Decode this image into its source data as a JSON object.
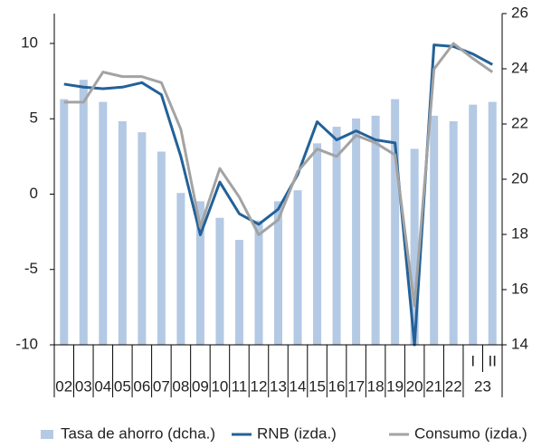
{
  "chart_data": {
    "type": "bar-line",
    "categories": [
      "02",
      "03",
      "04",
      "05",
      "06",
      "07",
      "08",
      "09",
      "10",
      "11",
      "12",
      "13",
      "14",
      "15",
      "16",
      "17",
      "18",
      "19",
      "20",
      "21",
      "22",
      {
        "label": "I",
        "group": "23"
      },
      {
        "label": "II",
        "group": "23"
      }
    ],
    "series": [
      {
        "name": "Tasa de ahorro (dcha.)",
        "type": "bar",
        "axis": "y2",
        "color": "#b4c9e4",
        "values": [
          22.9,
          23.6,
          22.8,
          22.1,
          21.7,
          21.0,
          19.5,
          19.2,
          18.6,
          17.8,
          18.5,
          19.2,
          19.6,
          21.3,
          21.9,
          22.2,
          22.3,
          22.9,
          21.1,
          22.3,
          22.1,
          22.7,
          22.8
        ]
      },
      {
        "name": "RNB (izda.)",
        "type": "line",
        "axis": "y",
        "color": "#236198",
        "values": [
          7.3,
          7.1,
          7.0,
          7.1,
          7.4,
          6.6,
          2.5,
          -2.7,
          0.8,
          -1.3,
          -2.0,
          -1.0,
          1.3,
          4.8,
          3.6,
          4.2,
          3.6,
          3.4,
          -10.0,
          9.9,
          9.8,
          9.3,
          8.6
        ]
      },
      {
        "name": "Consumo (izda.)",
        "type": "line",
        "axis": "y",
        "color": "#a3a3a3",
        "values": [
          6.1,
          6.1,
          8.1,
          7.8,
          7.8,
          7.4,
          4.3,
          -2.2,
          1.7,
          -0.2,
          -2.7,
          -1.7,
          1.5,
          3.0,
          2.5,
          3.9,
          3.4,
          2.6,
          -7.4,
          8.3,
          10.0,
          9.0,
          8.1
        ]
      }
    ],
    "ylim": [
      -10,
      12
    ],
    "yticks": [
      -10,
      -5,
      0,
      5,
      10
    ],
    "y2lim": [
      14,
      26
    ],
    "y2ticks": [
      14,
      16,
      18,
      20,
      22,
      24,
      26
    ],
    "grid": false,
    "legend": "bottom"
  }
}
